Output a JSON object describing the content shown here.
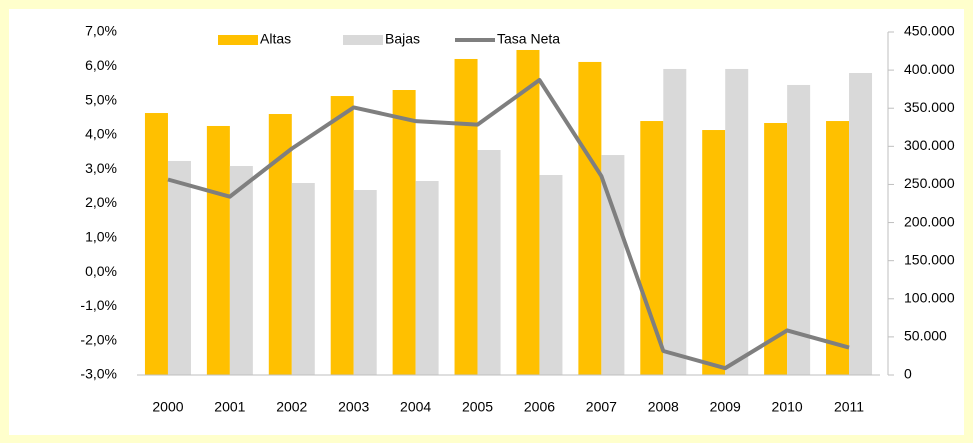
{
  "chart_data": {
    "type": "bar",
    "categories": [
      "2000",
      "2001",
      "2002",
      "2003",
      "2004",
      "2005",
      "2006",
      "2007",
      "2008",
      "2009",
      "2010",
      "2011"
    ],
    "series": [
      {
        "name": "Altas",
        "color": "#ffc000",
        "axis": "y2",
        "values": [
          343700,
          326700,
          342400,
          366000,
          373900,
          414600,
          426400,
          410700,
          333200,
          321400,
          330600,
          333200
        ]
      },
      {
        "name": "Bajas",
        "color": "#d9d9d9",
        "axis": "y2",
        "values": [
          280800,
          274200,
          251900,
          242700,
          254500,
          295200,
          262400,
          288600,
          401500,
          401500,
          380500,
          396200
        ]
      },
      {
        "name": "Tasa Neta",
        "color": "#7f7f7f",
        "type": "line",
        "values": [
          2.7,
          2.2,
          3.6,
          4.8,
          4.4,
          4.3,
          5.6,
          2.8,
          -2.3,
          -2.8,
          -1.7,
          -2.2
        ]
      }
    ],
    "ylim": [
      -3,
      7
    ],
    "yticks": [
      {
        "value": -3,
        "label": "-3,0%"
      },
      {
        "value": -2,
        "label": "-2,0%"
      },
      {
        "value": -1,
        "label": "-1,0%"
      },
      {
        "value": 0,
        "label": "0,0%"
      },
      {
        "value": 1,
        "label": "1,0%"
      },
      {
        "value": 2,
        "label": "2,0%"
      },
      {
        "value": 3,
        "label": "3,0%"
      },
      {
        "value": 4,
        "label": "4,0%"
      },
      {
        "value": 5,
        "label": "5,0%"
      },
      {
        "value": 6,
        "label": "6,0%"
      },
      {
        "value": 7,
        "label": "7,0%"
      }
    ],
    "y2lim": [
      0,
      450000
    ],
    "y2ticks": [
      0,
      {
        "value": 50000,
        "label": "50.000"
      },
      {
        "value": 100000,
        "label": "100.000"
      },
      {
        "value": 150000,
        "label": "150.000"
      },
      {
        "value": 200000,
        "label": "200.000"
      },
      {
        "value": 250000,
        "label": "250.000"
      },
      {
        "value": 300000,
        "label": "300.000"
      },
      {
        "value": 350000,
        "label": "350.000"
      },
      {
        "value": 400000,
        "label": "400.000"
      },
      {
        "value": 450000,
        "label": "450.000"
      }
    ],
    "legend": "top"
  }
}
